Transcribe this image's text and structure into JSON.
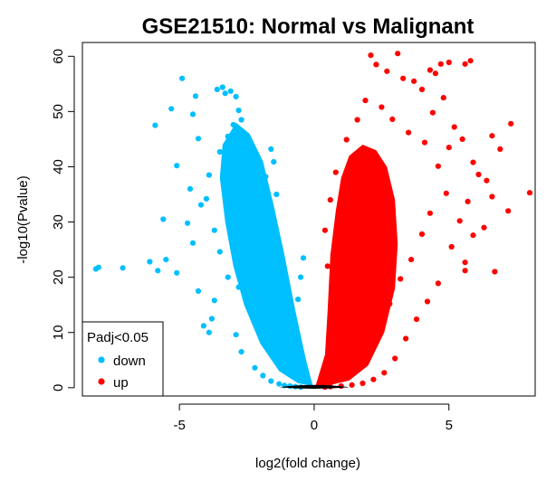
{
  "chart_data": {
    "type": "scatter",
    "title": "GSE21510: Normal vs Malignant",
    "xlabel": "log2(fold change)",
    "ylabel": "-log10(Pvalue)",
    "xlim": [
      -8.6,
      8.2
    ],
    "ylim": [
      -1.5,
      62.5
    ],
    "xticks": [
      -5,
      0,
      5
    ],
    "yticks": [
      0,
      10,
      20,
      30,
      40,
      50,
      60
    ],
    "grid": false,
    "legend": {
      "title": "Padj<0.05",
      "position": "bottom-left",
      "entries": [
        {
          "label": "down",
          "color": "#00BFFF"
        },
        {
          "label": "up",
          "color": "#FF0000"
        }
      ]
    },
    "series": [
      {
        "name": "down",
        "color": "#00BFFF",
        "points": [
          [
            -8.1,
            21.5
          ],
          [
            -8.0,
            21.8
          ],
          [
            -7.1,
            21.7
          ],
          [
            -6.1,
            22.8
          ],
          [
            -5.8,
            21.2
          ],
          [
            -5.5,
            23.2
          ],
          [
            -5.1,
            20.8
          ],
          [
            -4.9,
            56.0
          ],
          [
            -5.3,
            50.5
          ],
          [
            -5.1,
            40.2
          ],
          [
            -5.9,
            47.5
          ],
          [
            -5.6,
            30.5
          ],
          [
            -4.7,
            29.8
          ],
          [
            -4.4,
            52.8
          ],
          [
            -4.5,
            49.5
          ],
          [
            -4.3,
            45.1
          ],
          [
            -4.6,
            36.0
          ],
          [
            -4.2,
            33.1
          ],
          [
            -4.5,
            26.2
          ],
          [
            -4.3,
            17.5
          ],
          [
            -4.1,
            11.2
          ],
          [
            -3.9,
            10.0
          ],
          [
            -3.8,
            12.5
          ],
          [
            -3.7,
            15.8
          ],
          [
            -3.6,
            54.0
          ],
          [
            -3.4,
            54.4
          ],
          [
            -3.3,
            53.3
          ],
          [
            -3.1,
            53.7
          ],
          [
            -2.9,
            52.7
          ],
          [
            -2.8,
            50.2
          ],
          [
            -2.7,
            48.5
          ],
          [
            -3.0,
            47.6
          ],
          [
            -3.2,
            45.5
          ],
          [
            -2.6,
            44.0
          ],
          [
            -3.5,
            42.7
          ],
          [
            -2.5,
            42.5
          ],
          [
            -2.4,
            41.0
          ],
          [
            -2.2,
            42.6
          ],
          [
            -2.0,
            40.2
          ],
          [
            -1.6,
            43.2
          ],
          [
            -1.5,
            40.9
          ],
          [
            -3.9,
            38.5
          ],
          [
            -4.0,
            34.2
          ],
          [
            -3.3,
            36.6
          ],
          [
            -2.3,
            37.0
          ],
          [
            -1.8,
            38.2
          ],
          [
            -1.4,
            35.0
          ],
          [
            -3.7,
            28.5
          ],
          [
            -3.5,
            24.6
          ],
          [
            -3.2,
            20.0
          ],
          [
            -2.8,
            18.2
          ],
          [
            -2.4,
            14.5
          ],
          [
            -2.9,
            9.6
          ],
          [
            -2.7,
            6.5
          ],
          [
            -2.2,
            3.6
          ],
          [
            -1.9,
            2.2
          ],
          [
            -1.6,
            1.2
          ],
          [
            -1.3,
            0.7
          ],
          [
            -1.1,
            0.4
          ],
          [
            -0.9,
            0.3
          ],
          [
            -0.7,
            0.2
          ],
          [
            -0.5,
            0.1
          ],
          [
            -1.2,
            5.0
          ],
          [
            -1.0,
            8.5
          ],
          [
            -0.8,
            12.0
          ],
          [
            -0.6,
            16.0
          ],
          [
            -0.5,
            20.0
          ],
          [
            -0.4,
            23.5
          ]
        ]
      },
      {
        "name": "up",
        "color": "#FF0000",
        "points": [
          [
            8.0,
            35.3
          ],
          [
            7.2,
            32.0
          ],
          [
            7.3,
            47.8
          ],
          [
            6.9,
            43.2
          ],
          [
            6.6,
            45.6
          ],
          [
            6.6,
            34.6
          ],
          [
            6.4,
            37.5
          ],
          [
            6.7,
            21.0
          ],
          [
            5.6,
            21.2
          ],
          [
            6.3,
            29.0
          ],
          [
            5.8,
            59.2
          ],
          [
            5.6,
            58.6
          ],
          [
            5.0,
            58.9
          ],
          [
            4.7,
            58.6
          ],
          [
            4.3,
            57.5
          ],
          [
            3.1,
            60.5
          ],
          [
            2.1,
            60.2
          ],
          [
            2.3,
            58.5
          ],
          [
            2.7,
            57.3
          ],
          [
            3.3,
            56.0
          ],
          [
            3.7,
            55.5
          ],
          [
            4.0,
            54.0
          ],
          [
            4.5,
            56.9
          ],
          [
            4.8,
            52.5
          ],
          [
            4.4,
            49.8
          ],
          [
            5.2,
            47.2
          ],
          [
            5.5,
            45.0
          ],
          [
            5.0,
            43.5
          ],
          [
            5.9,
            40.8
          ],
          [
            6.1,
            38.6
          ],
          [
            5.7,
            33.7
          ],
          [
            5.4,
            30.2
          ],
          [
            5.9,
            27.6
          ],
          [
            5.1,
            25.5
          ],
          [
            5.6,
            22.7
          ],
          [
            4.6,
            18.9
          ],
          [
            4.2,
            15.6
          ],
          [
            3.8,
            12.4
          ],
          [
            3.4,
            8.9
          ],
          [
            3.0,
            5.3
          ],
          [
            2.6,
            2.7
          ],
          [
            2.2,
            1.5
          ],
          [
            1.8,
            0.8
          ],
          [
            1.4,
            0.5
          ],
          [
            1.0,
            0.3
          ],
          [
            0.6,
            0.2
          ],
          [
            0.4,
            0.1
          ],
          [
            1.2,
            44.9
          ],
          [
            1.6,
            48.5
          ],
          [
            1.9,
            52.0
          ],
          [
            2.5,
            50.8
          ],
          [
            2.9,
            48.6
          ],
          [
            3.5,
            46.2
          ],
          [
            4.1,
            44.4
          ],
          [
            4.6,
            40.1
          ],
          [
            4.9,
            35.2
          ],
          [
            4.3,
            31.6
          ],
          [
            4.0,
            27.8
          ],
          [
            3.6,
            23.2
          ],
          [
            3.2,
            19.7
          ],
          [
            2.8,
            15.2
          ],
          [
            2.4,
            11.6
          ],
          [
            2.0,
            8.4
          ],
          [
            1.6,
            5.6
          ],
          [
            1.2,
            3.0
          ],
          [
            0.9,
            8.8
          ],
          [
            0.7,
            15.0
          ],
          [
            0.5,
            22.0
          ],
          [
            0.4,
            28.5
          ],
          [
            0.6,
            34.0
          ],
          [
            0.8,
            39.0
          ]
        ]
      }
    ]
  }
}
